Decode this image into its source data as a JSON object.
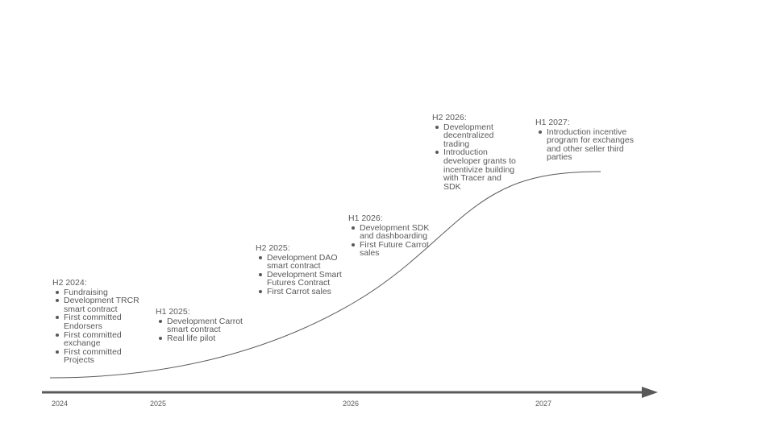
{
  "colors": {
    "text": "#595959",
    "curve": "#595959",
    "axis": "#595959"
  },
  "milestones": [
    {
      "title": "H2 2024:",
      "items": [
        "Fundraising",
        "Development TRCR smart contract",
        "First committed Endorsers",
        "First committed exchange",
        "First committed Projects"
      ]
    },
    {
      "title": "H1 2025:",
      "items": [
        "Development Carrot smart contract",
        "Real life pilot"
      ]
    },
    {
      "title": "H2 2025:",
      "items": [
        "Development DAO smart contract",
        "Development Smart Futures Contract",
        "First Carrot sales"
      ]
    },
    {
      "title": "H1 2026:",
      "items": [
        "Development SDK and dashboarding",
        "First Future Carrot sales"
      ]
    },
    {
      "title": "H2 2026:",
      "items": [
        "Development decentralized trading",
        "Introduction developer grants to incentivize building with Tracer and SDK"
      ]
    },
    {
      "title": "H1 2027:",
      "items": [
        "Introduction incentive program for exchanges and other seller third parties"
      ]
    }
  ],
  "axis": {
    "years": [
      "2024",
      "2025",
      "2026",
      "2027"
    ]
  }
}
